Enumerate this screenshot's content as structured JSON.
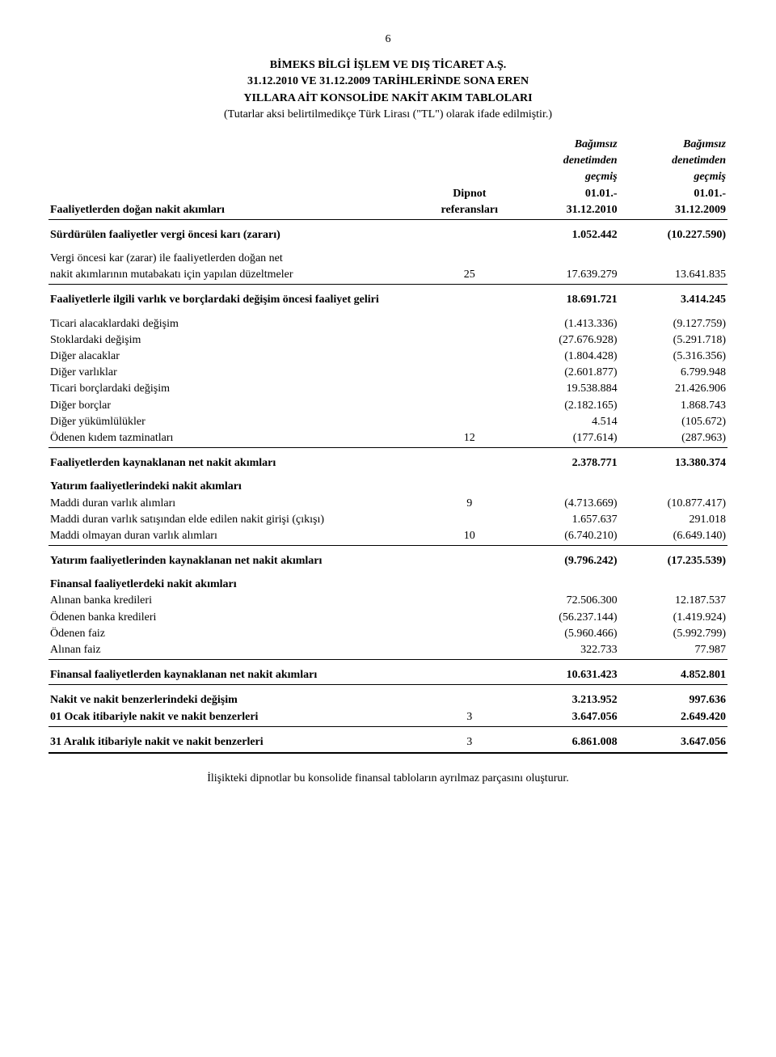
{
  "page_number": "6",
  "company": "BİMEKS BİLGİ İŞLEM VE DIŞ TİCARET A.Ş.",
  "dates_line": "31.12.2010 VE 31.12.2009 TARİHLERİNDE SONA EREN",
  "subtitle": "YILLARA AİT KONSOLİDE NAKİT AKIM TABLOLARI",
  "note_line": "(Tutarlar aksi belirtilmedikçe Türk Lirası (\"TL\") olarak ifade edilmiştir.)",
  "header": {
    "activities_label": "Faaliyetlerden doğan nakit akımları",
    "ref_top": "Dipnot",
    "ref_bottom": "referansları",
    "col1_a": "Bağımsız",
    "col1_b": "denetimden",
    "col1_c": "geçmiş",
    "col1_d": "01.01.-",
    "col1_e": "31.12.2010",
    "col2_a": "Bağımsız",
    "col2_b": "denetimden",
    "col2_c": "geçmiş",
    "col2_d": "01.01.-",
    "col2_e": "31.12.2009"
  },
  "rows": {
    "r1": {
      "label": "Sürdürülen faaliyetler vergi öncesi karı (zararı)",
      "ref": "",
      "v1": "1.052.442",
      "v2": "(10.227.590)"
    },
    "r2a": {
      "label": "Vergi öncesi kar (zarar) ile faaliyetlerden doğan net"
    },
    "r2": {
      "label": "nakit akımlarının mutabakatı için yapılan düzeltmeler",
      "ref": "25",
      "v1": "17.639.279",
      "v2": "13.641.835"
    },
    "r3": {
      "label": "Faaliyetlerle ilgili varlık ve borçlardaki değişim öncesi faaliyet geliri",
      "ref": "",
      "v1": "18.691.721",
      "v2": "3.414.245"
    },
    "r4": {
      "label": "Ticari alacaklardaki değişim",
      "ref": "",
      "v1": "(1.413.336)",
      "v2": "(9.127.759)"
    },
    "r5": {
      "label": "Stoklardaki değişim",
      "ref": "",
      "v1": "(27.676.928)",
      "v2": "(5.291.718)"
    },
    "r6": {
      "label": "Diğer alacaklar",
      "ref": "",
      "v1": "(1.804.428)",
      "v2": "(5.316.356)"
    },
    "r7": {
      "label": "Diğer varlıklar",
      "ref": "",
      "v1": "(2.601.877)",
      "v2": "6.799.948"
    },
    "r8": {
      "label": "Ticari borçlardaki değişim",
      "ref": "",
      "v1": "19.538.884",
      "v2": "21.426.906"
    },
    "r9": {
      "label": "Diğer borçlar",
      "ref": "",
      "v1": "(2.182.165)",
      "v2": "1.868.743"
    },
    "r10": {
      "label": "Diğer yükümlülükler",
      "ref": "",
      "v1": "4.514",
      "v2": "(105.672)"
    },
    "r11": {
      "label": "Ödenen kıdem tazminatları",
      "ref": "12",
      "v1": "(177.614)",
      "v2": "(287.963)"
    },
    "r12": {
      "label": "Faaliyetlerden kaynaklanan net nakit akımları",
      "ref": "",
      "v1": "2.378.771",
      "v2": "13.380.374"
    },
    "r13": {
      "label": "Yatırım faaliyetlerindeki nakit akımları"
    },
    "r14": {
      "label": "Maddi duran varlık alımları",
      "ref": "9",
      "v1": "(4.713.669)",
      "v2": "(10.877.417)"
    },
    "r15": {
      "label": "Maddi duran varlık satışından elde edilen nakit girişi (çıkışı)",
      "ref": "",
      "v1": "1.657.637",
      "v2": "291.018"
    },
    "r16": {
      "label": "Maddi olmayan duran varlık alımları",
      "ref": "10",
      "v1": "(6.740.210)",
      "v2": "(6.649.140)"
    },
    "r17": {
      "label": "Yatırım faaliyetlerinden kaynaklanan net nakit akımları",
      "ref": "",
      "v1": "(9.796.242)",
      "v2": "(17.235.539)"
    },
    "r18": {
      "label": "Finansal faaliyetlerdeki nakit akımları"
    },
    "r19": {
      "label": "Alınan banka kredileri",
      "ref": "",
      "v1": "72.506.300",
      "v2": "12.187.537"
    },
    "r20": {
      "label": "Ödenen banka kredileri",
      "ref": "",
      "v1": "(56.237.144)",
      "v2": "(1.419.924)"
    },
    "r21": {
      "label": "Ödenen faiz",
      "ref": "",
      "v1": "(5.960.466)",
      "v2": "(5.992.799)"
    },
    "r22": {
      "label": "Alınan faiz",
      "ref": "",
      "v1": "322.733",
      "v2": "77.987"
    },
    "r23": {
      "label": "Finansal faaliyetlerden kaynaklanan net nakit akımları",
      "ref": "",
      "v1": "10.631.423",
      "v2": "4.852.801"
    },
    "r24": {
      "label": "Nakit ve nakit benzerlerindeki değişim",
      "ref": "",
      "v1": "3.213.952",
      "v2": "997.636"
    },
    "r25": {
      "label": "01 Ocak itibariyle nakit ve nakit benzerleri",
      "ref": "3",
      "v1": "3.647.056",
      "v2": "2.649.420"
    },
    "r26": {
      "label": "31 Aralık itibariyle nakit ve nakit benzerleri",
      "ref": "3",
      "v1": "6.861.008",
      "v2": "3.647.056"
    }
  },
  "footer": "İlişikteki dipnotlar bu konsolide finansal tabloların ayrılmaz parçasını oluşturur."
}
